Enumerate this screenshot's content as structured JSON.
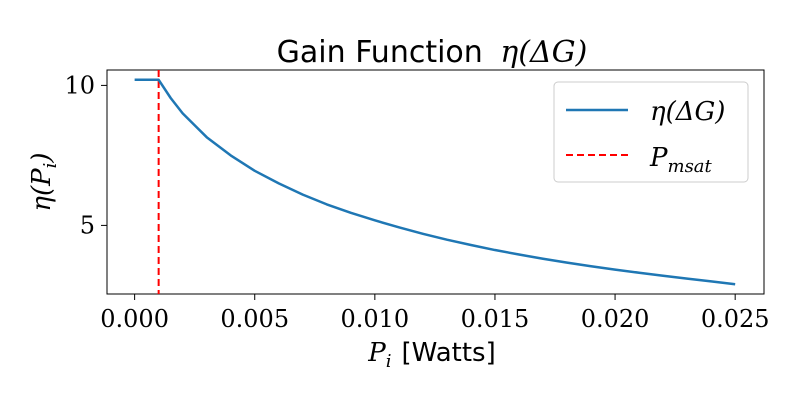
{
  "chart_data": {
    "type": "line",
    "title_text": "Gain Function",
    "title_math": "η(ΔG)",
    "xlabel_math": "P",
    "xlabel_sub": "i",
    "xlabel_text": "[Watts]",
    "ylabel_math": "η(P",
    "ylabel_sub": "i",
    "ylabel_close": ")",
    "xlim": [
      -0.00115,
      0.0262
    ],
    "ylim": [
      2.55,
      10.55
    ],
    "xticks": [
      0.0,
      0.005,
      0.01,
      0.015,
      0.02,
      0.025
    ],
    "xtick_labels": [
      "0.000",
      "0.005",
      "0.010",
      "0.015",
      "0.020",
      "0.025"
    ],
    "yticks": [
      5,
      10
    ],
    "ytick_labels": [
      "5",
      "10"
    ],
    "grid": false,
    "legend_position": "top-right",
    "series": [
      {
        "name": "η(ΔG)",
        "color": "#1f77b4",
        "style": "solid",
        "kind": "curve",
        "x": [
          0.0,
          0.0005,
          0.001,
          0.0015,
          0.002,
          0.003,
          0.004,
          0.005,
          0.006,
          0.007,
          0.008,
          0.009,
          0.01,
          0.011,
          0.012,
          0.013,
          0.014,
          0.015,
          0.016,
          0.017,
          0.018,
          0.019,
          0.02,
          0.021,
          0.022,
          0.023,
          0.024,
          0.025
        ],
        "y": [
          10.2,
          10.2,
          10.2,
          9.55,
          9.0,
          8.15,
          7.5,
          6.95,
          6.5,
          6.1,
          5.75,
          5.45,
          5.18,
          4.93,
          4.7,
          4.49,
          4.3,
          4.12,
          3.96,
          3.81,
          3.67,
          3.54,
          3.42,
          3.31,
          3.2,
          3.1,
          3.0,
          2.9
        ]
      },
      {
        "name": "P",
        "name_sub": "msat",
        "color": "#ff0000",
        "style": "dashed",
        "kind": "vline",
        "x": 0.001
      }
    ]
  }
}
